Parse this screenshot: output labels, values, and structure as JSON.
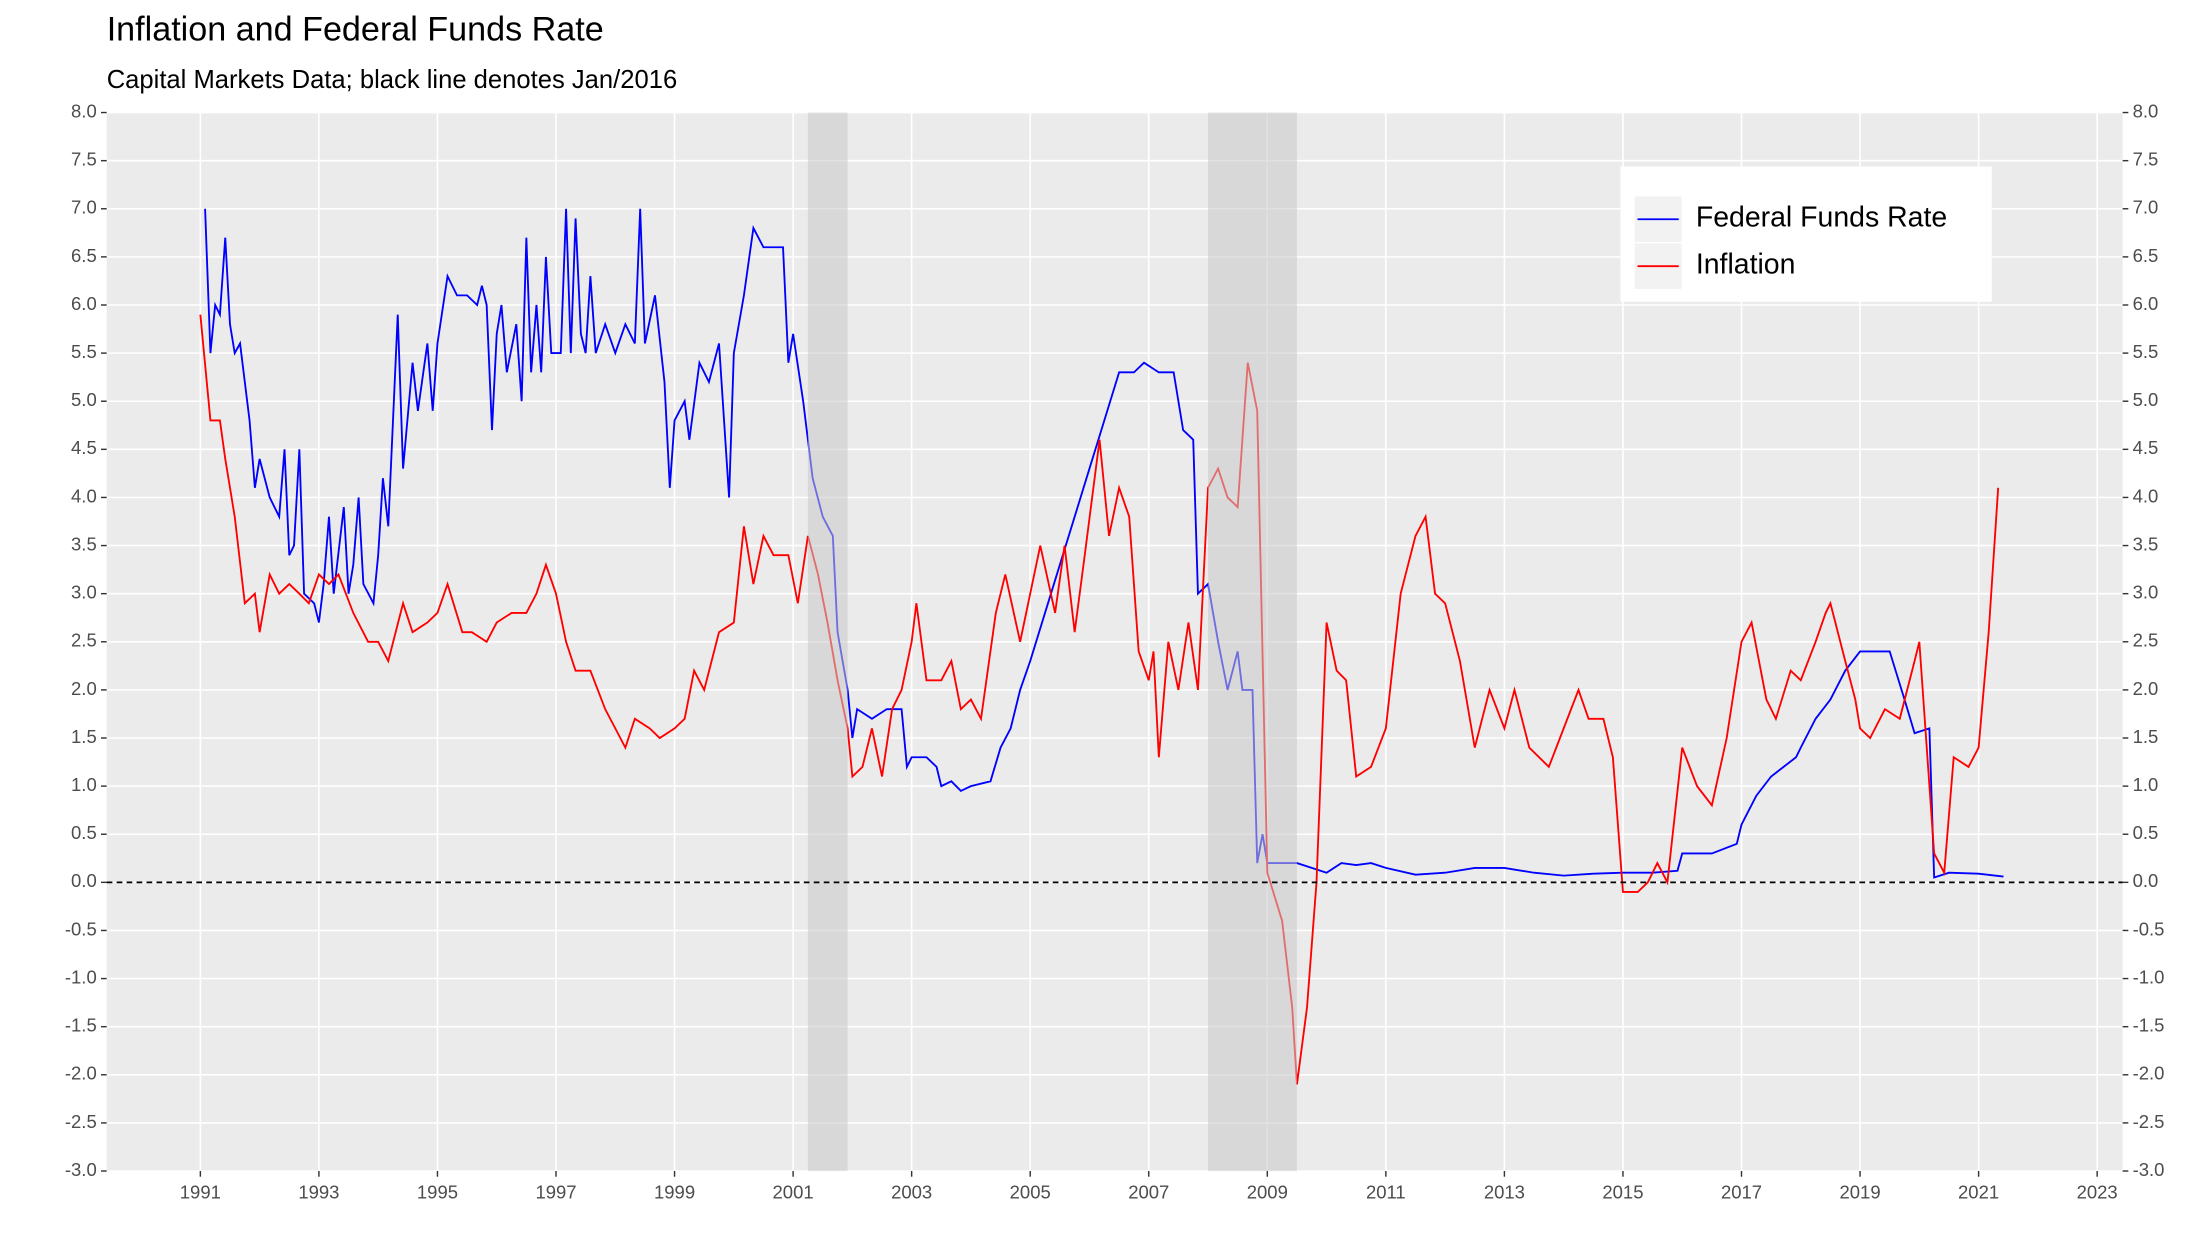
{
  "chart_data": {
    "type": "line",
    "title": "Inflation and Federal Funds Rate",
    "subtitle": "Capital Markets Data; black line denotes Jan/2016",
    "xlim": [
      1989.42,
      2023.43
    ],
    "xticks": [
      1991,
      1993,
      1995,
      1997,
      1999,
      2001,
      2003,
      2005,
      2007,
      2009,
      2011,
      2013,
      2015,
      2017,
      2019,
      2021,
      2023
    ],
    "ylim": [
      -3,
      8
    ],
    "yticks": [
      {
        "value": -3,
        "label": "-3.0"
      },
      -2.5,
      {
        "value": -2,
        "label": "-2.0"
      },
      -1.5,
      {
        "value": -1,
        "label": "-1.0"
      },
      -0.5,
      {
        "value": 0,
        "label": "0.0"
      },
      0.5,
      {
        "value": 1,
        "label": "1.0"
      },
      1.5,
      {
        "value": 2,
        "label": "2.0"
      },
      2.5,
      {
        "value": 3,
        "label": "3.0"
      },
      3.5,
      {
        "value": 4,
        "label": "4.0"
      },
      4.5,
      {
        "value": 5,
        "label": "5.0"
      },
      5.5,
      {
        "value": 6,
        "label": "6.0"
      },
      6.5,
      {
        "value": 7,
        "label": "7.0"
      },
      7.5,
      {
        "value": 8,
        "label": "8.0"
      }
    ],
    "grid": true,
    "legend": "top-right",
    "secondary_axis_mirrors_y": true,
    "reference_line": {
      "value": 0,
      "style": "dashed",
      "color": "#000000"
    },
    "shaded_periods": [
      {
        "start": 2001.25,
        "end": 2001.92
      },
      {
        "start": 2008.0,
        "end": 2009.5
      }
    ],
    "series": [
      {
        "name": "Federal Funds Rate",
        "color": "#0000ff",
        "x": [
          1991.08,
          1991.17,
          1991.25,
          1991.33,
          1991.42,
          1991.5,
          1991.58,
          1991.67,
          1991.83,
          1991.92,
          1992.0,
          1992.17,
          1992.33,
          1992.42,
          1992.5,
          1992.58,
          1992.67,
          1992.75,
          1992.92,
          1993.0,
          1993.08,
          1993.17,
          1993.25,
          1993.42,
          1993.5,
          1993.58,
          1993.67,
          1993.75,
          1993.92,
          1994.0,
          1994.08,
          1994.17,
          1994.33,
          1994.42,
          1994.58,
          1994.67,
          1994.83,
          1994.92,
          1995.0,
          1995.17,
          1995.33,
          1995.5,
          1995.67,
          1995.75,
          1995.83,
          1995.92,
          1996.0,
          1996.08,
          1996.17,
          1996.33,
          1996.42,
          1996.5,
          1996.58,
          1996.67,
          1996.75,
          1996.83,
          1996.92,
          1997.08,
          1997.17,
          1997.25,
          1997.33,
          1997.42,
          1997.5,
          1997.58,
          1997.67,
          1997.83,
          1998.0,
          1998.17,
          1998.33,
          1998.42,
          1998.5,
          1998.67,
          1998.83,
          1998.92,
          1999.0,
          1999.17,
          1999.25,
          1999.42,
          1999.58,
          1999.75,
          1999.92,
          2000.0,
          2000.17,
          2000.33,
          2000.5,
          2000.67,
          2000.83,
          2000.92,
          2001.0,
          2001.17,
          2001.33,
          2001.5,
          2001.67,
          2001.75,
          2001.92,
          2002.0,
          2002.08,
          2002.33,
          2002.58,
          2002.83,
          2002.92,
          2003.0,
          2003.25,
          2003.42,
          2003.5,
          2003.67,
          2003.83,
          2004.0,
          2004.33,
          2004.5,
          2004.67,
          2004.83,
          2005.0,
          2005.25,
          2005.5,
          2005.75,
          2006.0,
          2006.25,
          2006.5,
          2006.75,
          2006.92,
          2007.17,
          2007.42,
          2007.58,
          2007.75,
          2007.83,
          2008.0,
          2008.17,
          2008.33,
          2008.5,
          2008.58,
          2008.75,
          2008.83,
          2008.92,
          2009.0,
          2009.25,
          2009.5,
          2009.75,
          2010.0,
          2010.25,
          2010.5,
          2010.75,
          2011.0,
          2011.5,
          2012.0,
          2012.5,
          2013.0,
          2013.5,
          2014.0,
          2014.5,
          2015.0,
          2015.5,
          2015.92,
          2016.0,
          2016.5,
          2016.92,
          2017.0,
          2017.25,
          2017.5,
          2017.92,
          2018.0,
          2018.25,
          2018.5,
          2018.75,
          2019.0,
          2019.5,
          2019.75,
          2019.92,
          2020.17,
          2020.25,
          2020.5,
          2021.0,
          2021.42
        ],
        "values": [
          7.0,
          5.5,
          6.0,
          5.9,
          6.7,
          5.8,
          5.5,
          5.6,
          4.8,
          4.1,
          4.4,
          4.0,
          3.8,
          4.5,
          3.4,
          3.5,
          4.5,
          3.0,
          2.9,
          2.7,
          3.1,
          3.8,
          3.0,
          3.9,
          3.0,
          3.3,
          4.0,
          3.1,
          2.9,
          3.4,
          4.2,
          3.7,
          5.9,
          4.3,
          5.4,
          4.9,
          5.6,
          4.9,
          5.6,
          6.3,
          6.1,
          6.1,
          6.0,
          6.2,
          6.0,
          4.7,
          5.7,
          6.0,
          5.3,
          5.8,
          5.0,
          6.7,
          5.3,
          6.0,
          5.3,
          6.5,
          5.5,
          5.5,
          7.0,
          5.5,
          6.9,
          5.7,
          5.5,
          6.3,
          5.5,
          5.8,
          5.5,
          5.8,
          5.6,
          7.0,
          5.6,
          6.1,
          5.2,
          4.1,
          4.8,
          5.0,
          4.6,
          5.4,
          5.2,
          5.6,
          4.0,
          5.5,
          6.1,
          6.8,
          6.6,
          6.6,
          6.6,
          5.4,
          5.7,
          5.0,
          4.2,
          3.8,
          3.6,
          2.6,
          2.0,
          1.5,
          1.8,
          1.7,
          1.8,
          1.8,
          1.2,
          1.3,
          1.3,
          1.2,
          1.0,
          1.05,
          0.95,
          1.0,
          1.05,
          1.4,
          1.6,
          2.0,
          2.3,
          2.8,
          3.3,
          3.8,
          4.3,
          4.8,
          5.3,
          5.3,
          5.4,
          5.3,
          5.3,
          4.7,
          4.6,
          3.0,
          3.1,
          2.5,
          2.0,
          2.4,
          2.0,
          2.0,
          0.2,
          0.5,
          0.2,
          0.2,
          0.2,
          0.15,
          0.1,
          0.2,
          0.18,
          0.2,
          0.15,
          0.08,
          0.1,
          0.15,
          0.15,
          0.1,
          0.07,
          0.09,
          0.1,
          0.1,
          0.12,
          0.3,
          0.3,
          0.4,
          0.6,
          0.9,
          1.1,
          1.3,
          1.4,
          1.7,
          1.9,
          2.2,
          2.4,
          2.4,
          1.9,
          1.55,
          1.6,
          0.05,
          0.1,
          0.09,
          0.06
        ]
      },
      {
        "name": "Inflation",
        "color": "#ff0000",
        "x": [
          1991.0,
          1991.17,
          1991.33,
          1991.42,
          1991.58,
          1991.75,
          1991.92,
          1992.0,
          1992.17,
          1992.33,
          1992.5,
          1992.67,
          1992.83,
          1993.0,
          1993.17,
          1993.33,
          1993.58,
          1993.83,
          1994.0,
          1994.17,
          1994.42,
          1994.58,
          1994.83,
          1995.0,
          1995.17,
          1995.42,
          1995.58,
          1995.83,
          1996.0,
          1996.25,
          1996.5,
          1996.67,
          1996.83,
          1997.0,
          1997.17,
          1997.33,
          1997.58,
          1997.83,
          1998.0,
          1998.17,
          1998.33,
          1998.58,
          1998.75,
          1999.0,
          1999.17,
          1999.33,
          1999.5,
          1999.75,
          2000.0,
          2000.17,
          2000.33,
          2000.5,
          2000.67,
          2000.92,
          2001.08,
          2001.25,
          2001.42,
          2001.58,
          2001.75,
          2001.92,
          2002.0,
          2002.17,
          2002.33,
          2002.5,
          2002.67,
          2002.83,
          2003.0,
          2003.08,
          2003.25,
          2003.5,
          2003.67,
          2003.83,
          2004.0,
          2004.17,
          2004.42,
          2004.58,
          2004.83,
          2005.0,
          2005.17,
          2005.42,
          2005.58,
          2005.75,
          2005.92,
          2006.17,
          2006.33,
          2006.5,
          2006.67,
          2006.83,
          2007.0,
          2007.08,
          2007.17,
          2007.33,
          2007.5,
          2007.67,
          2007.83,
          2008.0,
          2008.17,
          2008.33,
          2008.5,
          2008.67,
          2008.83,
          2009.0,
          2009.25,
          2009.42,
          2009.5,
          2009.67,
          2009.83,
          2010.0,
          2010.17,
          2010.33,
          2010.5,
          2010.75,
          2011.0,
          2011.25,
          2011.5,
          2011.67,
          2011.83,
          2012.0,
          2012.25,
          2012.5,
          2012.75,
          2013.0,
          2013.17,
          2013.42,
          2013.75,
          2014.0,
          2014.25,
          2014.42,
          2014.67,
          2014.83,
          2015.0,
          2015.25,
          2015.42,
          2015.58,
          2015.75,
          2016.0,
          2016.25,
          2016.5,
          2016.75,
          2017.0,
          2017.17,
          2017.42,
          2017.58,
          2017.83,
          2018.0,
          2018.25,
          2018.42,
          2018.5,
          2018.75,
          2018.92,
          2019.0,
          2019.17,
          2019.42,
          2019.67,
          2019.92,
          2020.0,
          2020.25,
          2020.42,
          2020.58,
          2020.83,
          2021.0,
          2021.17,
          2021.33
        ],
        "values": [
          5.9,
          4.8,
          4.8,
          4.4,
          3.8,
          2.9,
          3.0,
          2.6,
          3.2,
          3.0,
          3.1,
          3.0,
          2.9,
          3.2,
          3.1,
          3.2,
          2.8,
          2.5,
          2.5,
          2.3,
          2.9,
          2.6,
          2.7,
          2.8,
          3.1,
          2.6,
          2.6,
          2.5,
          2.7,
          2.8,
          2.8,
          3.0,
          3.3,
          3.0,
          2.5,
          2.2,
          2.2,
          1.8,
          1.6,
          1.4,
          1.7,
          1.6,
          1.5,
          1.6,
          1.7,
          2.2,
          2.0,
          2.6,
          2.7,
          3.7,
          3.1,
          3.6,
          3.4,
          3.4,
          2.9,
          3.6,
          3.2,
          2.7,
          2.1,
          1.6,
          1.1,
          1.2,
          1.6,
          1.1,
          1.8,
          2.0,
          2.5,
          2.9,
          2.1,
          2.1,
          2.3,
          1.8,
          1.9,
          1.7,
          2.8,
          3.2,
          2.5,
          3.0,
          3.5,
          2.8,
          3.5,
          2.6,
          3.4,
          4.6,
          3.6,
          4.1,
          3.8,
          2.4,
          2.1,
          2.4,
          1.3,
          2.5,
          2.0,
          2.7,
          2.0,
          4.1,
          4.3,
          4.0,
          3.9,
          5.4,
          4.9,
          0.1,
          -0.4,
          -1.3,
          -2.1,
          -1.3,
          0.0,
          2.7,
          2.2,
          2.1,
          1.1,
          1.2,
          1.6,
          3.0,
          3.6,
          3.8,
          3.0,
          2.9,
          2.3,
          1.4,
          2.0,
          1.6,
          2.0,
          1.4,
          1.2,
          1.6,
          2.0,
          1.7,
          1.7,
          1.3,
          -0.1,
          -0.1,
          0.0,
          0.2,
          0.0,
          1.4,
          1.0,
          0.8,
          1.5,
          2.5,
          2.7,
          1.9,
          1.7,
          2.2,
          2.1,
          2.5,
          2.8,
          2.9,
          2.3,
          1.9,
          1.6,
          1.5,
          1.8,
          1.7,
          2.3,
          2.5,
          0.3,
          0.1,
          1.3,
          1.2,
          1.4,
          2.6,
          4.1
        ]
      }
    ]
  }
}
